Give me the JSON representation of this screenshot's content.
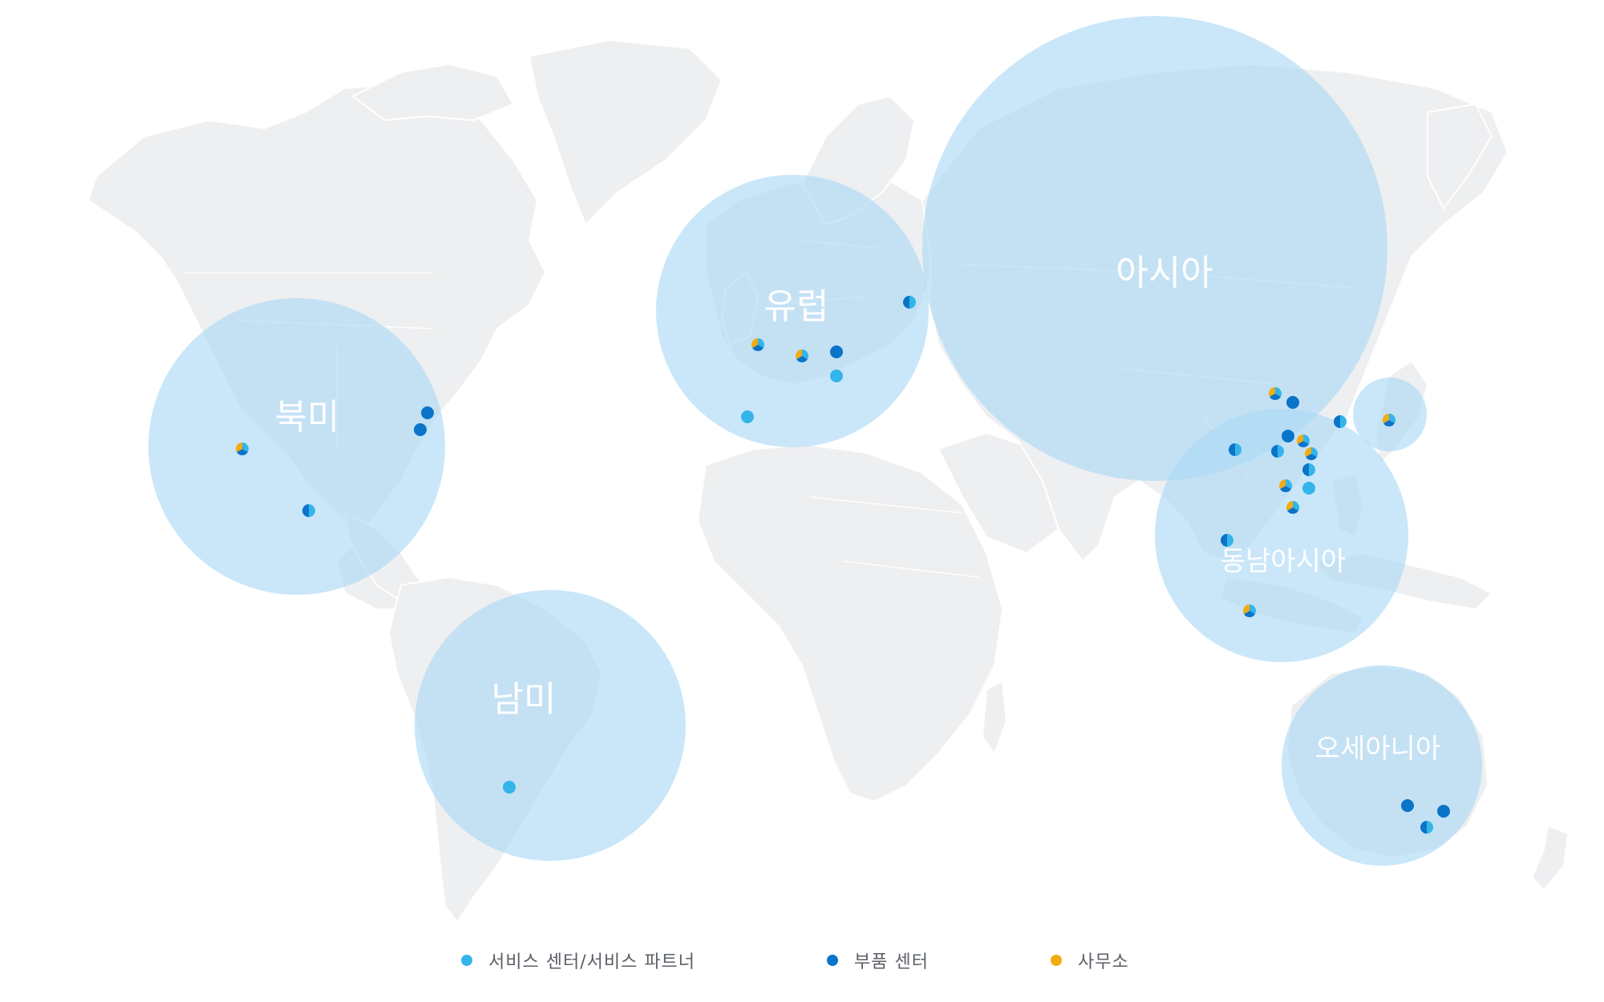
{
  "colors": {
    "service": "#33b5ea",
    "parts": "#0a74c9",
    "office": "#f2ab12",
    "circle": "#a9d8f6",
    "land": "#eeeff1"
  },
  "regions": [
    {
      "id": "north-america",
      "label": "북미"
    },
    {
      "id": "south-america",
      "label": "남미"
    },
    {
      "id": "europe",
      "label": "유럽"
    },
    {
      "id": "asia",
      "label": "아시아"
    },
    {
      "id": "southeast-asia",
      "label": "동남아시아"
    },
    {
      "id": "oceania",
      "label": "오세아니아"
    },
    {
      "id": "japan",
      "label": ""
    }
  ],
  "markers": [
    {
      "region": "north-america",
      "services": [
        "service",
        "parts",
        "office"
      ]
    },
    {
      "region": "north-america",
      "services": [
        "parts"
      ]
    },
    {
      "region": "north-america",
      "services": [
        "parts"
      ]
    },
    {
      "region": "north-america",
      "services": [
        "service",
        "parts"
      ]
    },
    {
      "region": "south-america",
      "services": [
        "service"
      ]
    },
    {
      "region": "europe",
      "services": [
        "service",
        "parts",
        "office"
      ]
    },
    {
      "region": "europe",
      "services": [
        "service",
        "parts",
        "office"
      ]
    },
    {
      "region": "europe",
      "services": [
        "parts"
      ]
    },
    {
      "region": "europe",
      "services": [
        "service"
      ]
    },
    {
      "region": "europe",
      "services": [
        "service"
      ]
    },
    {
      "region": "europe",
      "services": [
        "service",
        "parts"
      ]
    },
    {
      "region": "asia",
      "services": [
        "service",
        "parts",
        "office"
      ]
    },
    {
      "region": "asia",
      "services": [
        "parts"
      ]
    },
    {
      "region": "asia",
      "services": [
        "service",
        "parts"
      ]
    },
    {
      "region": "asia",
      "services": [
        "service",
        "parts"
      ]
    },
    {
      "region": "asia",
      "services": [
        "service",
        "parts",
        "office"
      ]
    },
    {
      "region": "asia",
      "services": [
        "parts"
      ]
    },
    {
      "region": "asia",
      "services": [
        "service",
        "parts"
      ]
    },
    {
      "region": "asia",
      "services": [
        "service",
        "parts",
        "office"
      ]
    },
    {
      "region": "asia",
      "services": [
        "service",
        "parts"
      ]
    },
    {
      "region": "asia",
      "services": [
        "service",
        "parts",
        "office"
      ]
    },
    {
      "region": "asia",
      "services": [
        "service"
      ]
    },
    {
      "region": "asia",
      "services": [
        "service",
        "parts",
        "office"
      ]
    },
    {
      "region": "japan",
      "services": [
        "service",
        "parts",
        "office"
      ]
    },
    {
      "region": "southeast-asia",
      "services": [
        "service",
        "parts"
      ]
    },
    {
      "region": "southeast-asia",
      "services": [
        "service",
        "parts",
        "office"
      ]
    },
    {
      "region": "oceania",
      "services": [
        "parts"
      ]
    },
    {
      "region": "oceania",
      "services": [
        "parts"
      ]
    },
    {
      "region": "oceania",
      "services": [
        "service",
        "parts"
      ]
    }
  ],
  "legend": [
    {
      "key": "service",
      "label": "서비스 센터/서비스 파트너"
    },
    {
      "key": "parts",
      "label": "부품 센터"
    },
    {
      "key": "office",
      "label": "사무소"
    }
  ]
}
